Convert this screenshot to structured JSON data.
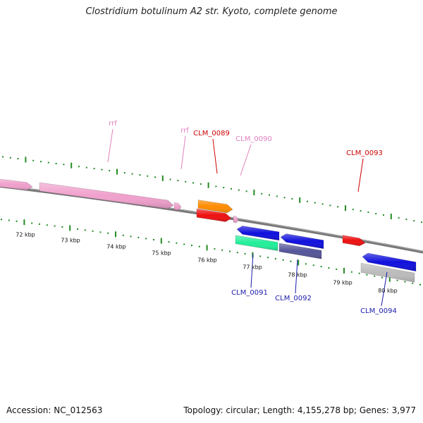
{
  "title": "Clostridium botulinum A2 str. Kyoto, complete genome",
  "footer": {
    "accession": "Accession: NC_012563",
    "summary": "Topology: circular; Length: 4,155,278 bp; Genes: 3,977"
  },
  "colors": {
    "backbone": "#777777",
    "tick": "#228b22",
    "rrf": "#f0a0cc",
    "red": "#ee1111",
    "orange": "#ff8c00",
    "blue": "#1010dd",
    "teal": "#22ee99",
    "slate": "#555599",
    "grey": "#bbbbbb",
    "label_red": "#cc0000",
    "label_pink": "#e480c0",
    "label_blue": "#1a1aaa"
  },
  "scale": {
    "ticks": [
      {
        "label": "72 kbp"
      },
      {
        "label": "73 kbp"
      },
      {
        "label": "74 kbp"
      },
      {
        "label": "75 kbp"
      },
      {
        "label": "76 kbp"
      },
      {
        "label": "77 kbp"
      },
      {
        "label": "78 kbp"
      },
      {
        "label": "79 kbp"
      },
      {
        "label": "80 kbp"
      }
    ]
  },
  "labels": [
    {
      "id": "rrf-1",
      "text": "rrf",
      "color": "label_pink"
    },
    {
      "id": "rrf-2",
      "text": "rrf",
      "color": "label_pink"
    },
    {
      "id": "clm-0089",
      "text": "CLM_0089",
      "color": "label_red"
    },
    {
      "id": "clm-0090",
      "text": "CLM_0090",
      "color": "label_pink"
    },
    {
      "id": "clm-0093",
      "text": "CLM_0093",
      "color": "label_red"
    },
    {
      "id": "clm-0091",
      "text": "CLM_0091",
      "color": "label_blue"
    },
    {
      "id": "clm-0092",
      "text": "CLM_0092",
      "color": "label_blue"
    },
    {
      "id": "clm-0094",
      "text": "CLM_0094",
      "color": "label_blue"
    }
  ]
}
